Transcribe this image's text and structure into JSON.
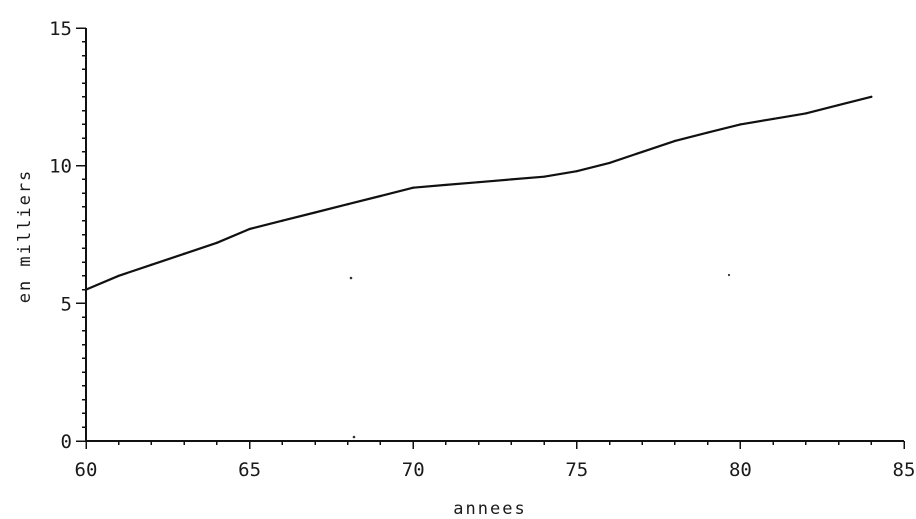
{
  "chart_data": {
    "type": "line",
    "title": "",
    "xlabel": "annees",
    "ylabel": "en milliers",
    "xlim": [
      60,
      85
    ],
    "ylim": [
      0,
      15
    ],
    "x_ticks": [
      "60",
      "65",
      "70",
      "75",
      "80",
      "85"
    ],
    "y_ticks": [
      "0",
      "5",
      "10",
      "15"
    ],
    "grid": false,
    "legend": "none",
    "colors": {
      "line": "#111111",
      "axis": "#111111"
    },
    "series": [
      {
        "x": [
          60,
          61,
          62,
          63,
          64,
          65,
          66,
          67,
          68,
          69,
          70,
          71,
          72,
          73,
          74,
          75,
          76,
          77,
          78,
          79,
          80,
          81,
          82,
          83,
          84
        ],
        "y": [
          5.5,
          6.0,
          6.4,
          6.8,
          7.2,
          7.7,
          8.0,
          8.3,
          8.6,
          8.9,
          9.2,
          9.3,
          9.4,
          9.5,
          9.6,
          9.8,
          10.1,
          10.5,
          10.9,
          11.2,
          11.5,
          11.7,
          11.9,
          12.2,
          12.5
        ]
      }
    ]
  }
}
